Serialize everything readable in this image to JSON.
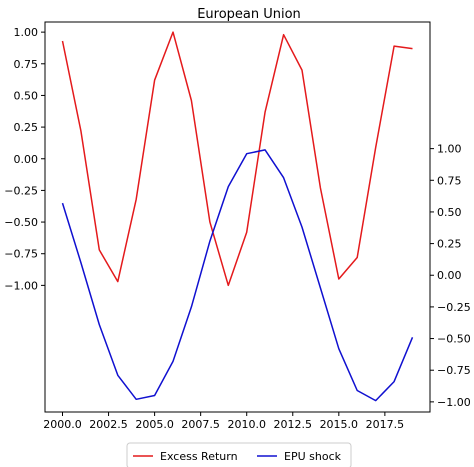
{
  "chart_data": {
    "type": "line",
    "title": "European Union",
    "xlabel": "",
    "x": [
      2000,
      2001,
      2002,
      2003,
      2004,
      2005,
      2006,
      2007,
      2008,
      2009,
      2010,
      2011,
      2012,
      2013,
      2014,
      2015,
      2016,
      2017,
      2018,
      2019
    ],
    "xlim": [
      1999.05,
      2019.95
    ],
    "x_ticks": [
      2000.0,
      2002.5,
      2005.0,
      2007.5,
      2010.0,
      2012.5,
      2015.0,
      2017.5
    ],
    "x_tick_labels": [
      "2000.0",
      "2002.5",
      "2005.0",
      "2007.5",
      "2010.0",
      "2012.5",
      "2015.0",
      "2017.5"
    ],
    "grid": false,
    "legend_position": "bottom-center, outside plot",
    "series": [
      {
        "name": "Excess Return",
        "color": "#e41a1c",
        "axis": "left",
        "values": [
          0.93,
          0.22,
          -0.72,
          -0.97,
          -0.32,
          0.62,
          1.0,
          0.46,
          -0.5,
          -1.0,
          -0.58,
          0.37,
          0.98,
          0.7,
          -0.23,
          -0.95,
          -0.78,
          0.09,
          0.89,
          0.87
        ]
      },
      {
        "name": "EPU shock",
        "color": "#1010d0",
        "axis": "right",
        "values": [
          0.57,
          0.1,
          -0.39,
          -0.79,
          -0.98,
          -0.95,
          -0.68,
          -0.25,
          0.27,
          0.7,
          0.96,
          0.99,
          0.77,
          0.38,
          -0.1,
          -0.58,
          -0.91,
          -0.99,
          -0.84,
          -0.49
        ]
      }
    ],
    "left_axis": {
      "ylim": [
        -2.0,
        1.08
      ],
      "ticks": [
        1.0,
        0.75,
        0.5,
        0.25,
        0.0,
        -0.25,
        -0.5,
        -0.75,
        -1.0
      ],
      "tick_labels": [
        "1.00",
        "0.75",
        "0.50",
        "0.25",
        "0.00",
        "−0.25",
        "−0.50",
        "−0.75",
        "−1.00"
      ]
    },
    "right_axis": {
      "ylim": [
        -1.08,
        2.0
      ],
      "ticks": [
        1.0,
        0.75,
        0.5,
        0.25,
        0.0,
        -0.25,
        -0.5,
        -0.75,
        -1.0
      ],
      "tick_labels": [
        "1.00",
        "0.75",
        "0.50",
        "0.25",
        "0.00",
        "−0.25",
        "−0.50",
        "−0.75",
        "−1.00"
      ]
    }
  }
}
